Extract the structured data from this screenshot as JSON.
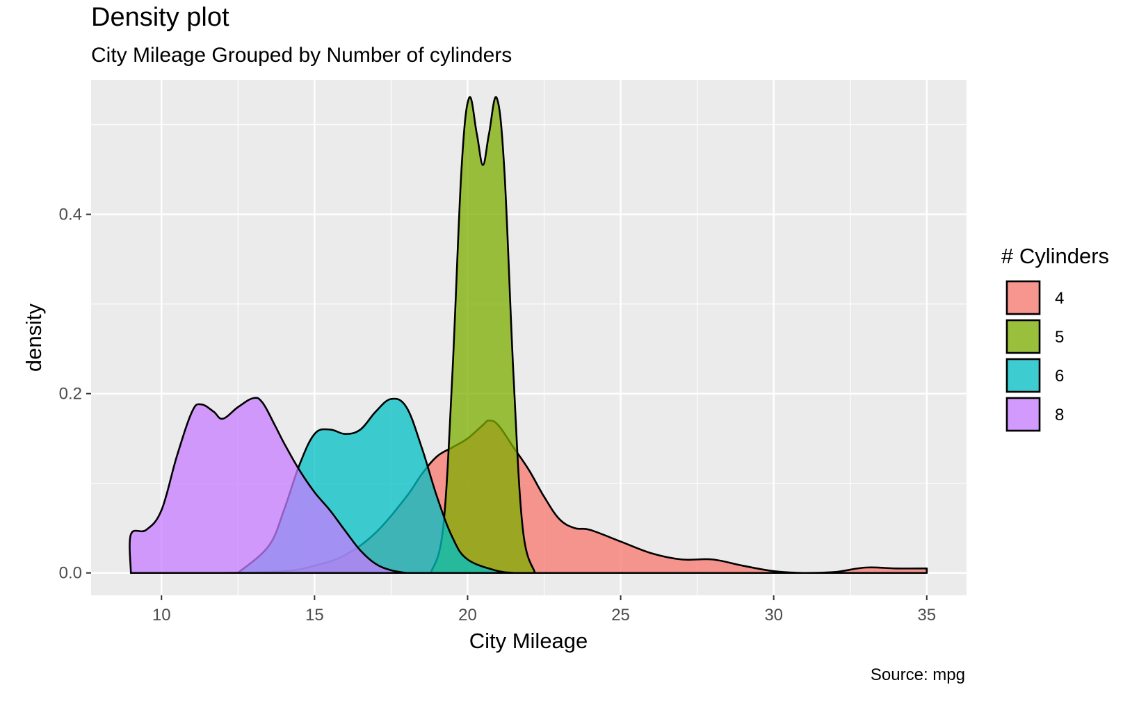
{
  "chart_data": {
    "type": "area",
    "title": "Density plot",
    "subtitle": "City Mileage Grouped by Number of cylinders",
    "xlabel": "City Mileage",
    "ylabel": "density",
    "caption": "Source: mpg",
    "xlim": [
      7.7,
      36.3
    ],
    "ylim": [
      -0.025,
      0.55
    ],
    "x_ticks": [
      10,
      15,
      20,
      25,
      30,
      35
    ],
    "y_ticks": [
      0.0,
      0.2,
      0.4
    ],
    "y_tick_labels": [
      "0.0",
      "0.2",
      "0.4"
    ],
    "grid": true,
    "legend": {
      "title": "# Cylinders",
      "position": "right"
    },
    "series": [
      {
        "name": "4",
        "color": "#F8766D",
        "points": [
          [
            9,
            0
          ],
          [
            12,
            0
          ],
          [
            14,
            0.002
          ],
          [
            15,
            0.008
          ],
          [
            16,
            0.02
          ],
          [
            17,
            0.045
          ],
          [
            18,
            0.085
          ],
          [
            18.5,
            0.11
          ],
          [
            19,
            0.13
          ],
          [
            19.5,
            0.14
          ],
          [
            20,
            0.15
          ],
          [
            20.5,
            0.165
          ],
          [
            20.7,
            0.17
          ],
          [
            21,
            0.165
          ],
          [
            21.5,
            0.14
          ],
          [
            22,
            0.115
          ],
          [
            22.5,
            0.085
          ],
          [
            23,
            0.06
          ],
          [
            23.5,
            0.05
          ],
          [
            24,
            0.048
          ],
          [
            25,
            0.035
          ],
          [
            26,
            0.022
          ],
          [
            27,
            0.015
          ],
          [
            28,
            0.015
          ],
          [
            29,
            0.008
          ],
          [
            30,
            0.002
          ],
          [
            31,
            0
          ],
          [
            32,
            0.001
          ],
          [
            33,
            0.006
          ],
          [
            34,
            0.005
          ],
          [
            35,
            0.005
          ]
        ]
      },
      {
        "name": "5",
        "color": "#7CAE00",
        "points": [
          [
            18.8,
            0
          ],
          [
            19.2,
            0.05
          ],
          [
            19.5,
            0.22
          ],
          [
            19.8,
            0.45
          ],
          [
            20.05,
            0.53
          ],
          [
            20.3,
            0.49
          ],
          [
            20.5,
            0.455
          ],
          [
            20.7,
            0.49
          ],
          [
            20.95,
            0.53
          ],
          [
            21.2,
            0.45
          ],
          [
            21.5,
            0.22
          ],
          [
            21.8,
            0.05
          ],
          [
            22.2,
            0
          ]
        ]
      },
      {
        "name": "6",
        "color": "#00BFC4",
        "points": [
          [
            12.5,
            0
          ],
          [
            13.5,
            0.03
          ],
          [
            14,
            0.07
          ],
          [
            14.5,
            0.12
          ],
          [
            15,
            0.155
          ],
          [
            15.5,
            0.16
          ],
          [
            16,
            0.155
          ],
          [
            16.5,
            0.16
          ],
          [
            17,
            0.18
          ],
          [
            17.5,
            0.194
          ],
          [
            18,
            0.185
          ],
          [
            18.5,
            0.14
          ],
          [
            19,
            0.085
          ],
          [
            19.5,
            0.04
          ],
          [
            20,
            0.015
          ],
          [
            21,
            0.002
          ],
          [
            21.5,
            0
          ]
        ]
      },
      {
        "name": "8",
        "color": "#C77CFF",
        "points": [
          [
            9,
            0
          ],
          [
            9,
            0.043
          ],
          [
            9.5,
            0.048
          ],
          [
            10,
            0.07
          ],
          [
            10.5,
            0.13
          ],
          [
            11,
            0.18
          ],
          [
            11.3,
            0.188
          ],
          [
            11.7,
            0.18
          ],
          [
            12,
            0.172
          ],
          [
            12.5,
            0.185
          ],
          [
            13,
            0.195
          ],
          [
            13.3,
            0.19
          ],
          [
            13.7,
            0.165
          ],
          [
            14,
            0.145
          ],
          [
            14.5,
            0.115
          ],
          [
            15,
            0.09
          ],
          [
            15.5,
            0.07
          ],
          [
            16,
            0.047
          ],
          [
            16.5,
            0.025
          ],
          [
            17,
            0.01
          ],
          [
            17.5,
            0.003
          ],
          [
            18,
            0
          ]
        ]
      }
    ]
  }
}
